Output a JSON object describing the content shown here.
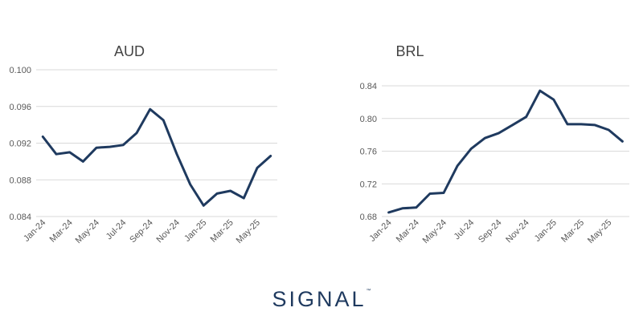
{
  "brand": {
    "logo_text": "SIGNAL",
    "trademark": "™"
  },
  "colors": {
    "series": "#1f3a5f",
    "grid": "#d9d9d9",
    "text": "#595959"
  },
  "chart_data": [
    {
      "type": "line",
      "title": "AUD",
      "xlabel": "",
      "ylabel": "",
      "grid": true,
      "ylim": [
        0.084,
        0.1
      ],
      "yticks": [
        "0.100",
        "0.096",
        "0.092",
        "0.088",
        "0.084"
      ],
      "x": [
        "Jan-24",
        "Feb-24",
        "Mar-24",
        "Apr-24",
        "May-24",
        "Jun-24",
        "Jul-24",
        "Aug-24",
        "Sep-24",
        "Oct-24",
        "Nov-24",
        "Dec-24",
        "Jan-25",
        "Feb-25",
        "Mar-25",
        "Apr-25",
        "May-25",
        "Jun-25"
      ],
      "xtick_labels": [
        "Jan-24",
        "Mar-24",
        "May-24",
        "Jul-24",
        "Sep-24",
        "Nov-24",
        "Jan-25",
        "Mar-25",
        "May-25"
      ],
      "series": [
        {
          "values": [
            0.0927,
            0.0908,
            0.091,
            0.09,
            0.0915,
            0.0916,
            0.0918,
            0.0931,
            0.0957,
            0.0945,
            0.0908,
            0.0875,
            0.0852,
            0.0865,
            0.0868,
            0.086,
            0.0893,
            0.0906
          ]
        }
      ]
    },
    {
      "type": "line",
      "title": "BRL",
      "xlabel": "",
      "ylabel": "",
      "grid": true,
      "ylim": [
        0.68,
        0.84
      ],
      "yticks": [
        "0.84",
        "0.80",
        "0.76",
        "0.72",
        "0.68"
      ],
      "x": [
        "Jan-24",
        "Feb-24",
        "Mar-24",
        "Apr-24",
        "May-24",
        "Jun-24",
        "Jul-24",
        "Aug-24",
        "Sep-24",
        "Oct-24",
        "Nov-24",
        "Dec-24",
        "Jan-25",
        "Feb-25",
        "Mar-25",
        "Apr-25",
        "May-25",
        "Jun-25"
      ],
      "xtick_labels": [
        "Jan-24",
        "Mar-24",
        "May-24",
        "Jul-24",
        "Sep-24",
        "Nov-24",
        "Jan-25",
        "Mar-25",
        "May-25"
      ],
      "series": [
        {
          "values": [
            0.685,
            0.69,
            0.691,
            0.708,
            0.709,
            0.742,
            0.763,
            0.776,
            0.782,
            0.792,
            0.802,
            0.834,
            0.823,
            0.793,
            0.793,
            0.792,
            0.786,
            0.772
          ]
        }
      ]
    }
  ]
}
